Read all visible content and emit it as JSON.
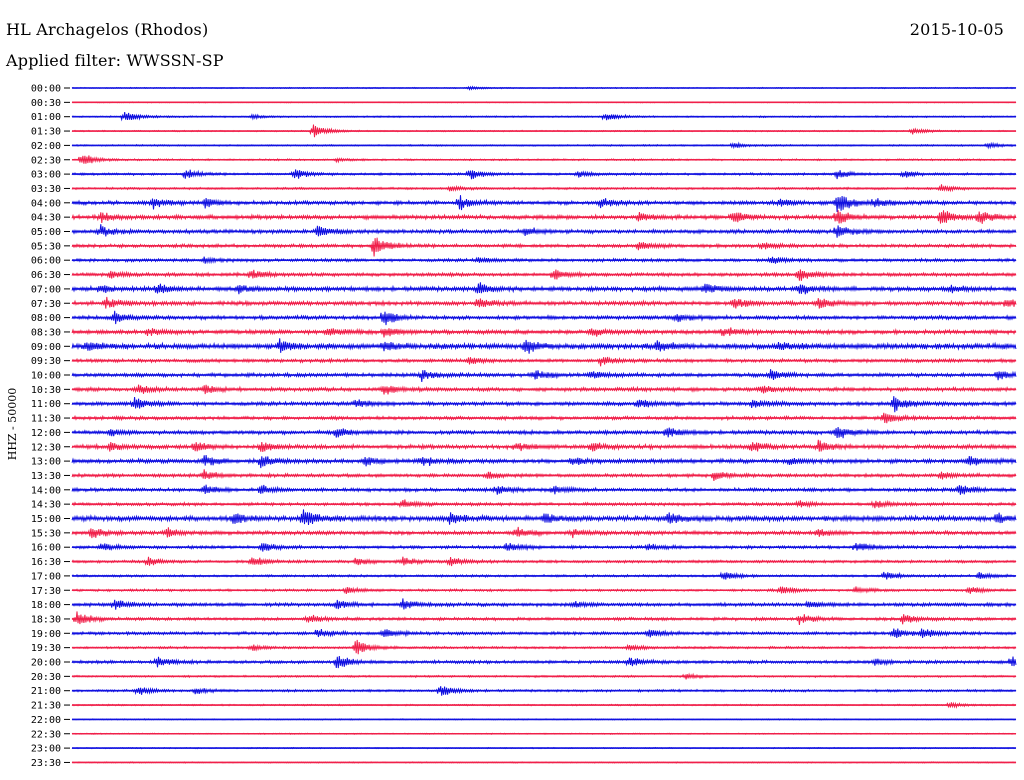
{
  "header": {
    "station": "HL Archagelos (Rhodos)",
    "date": "2015-10-05",
    "filter": "Applied filter: WWSSN-SP"
  },
  "chart_data": {
    "type": "line",
    "title": "HL Archagelos (Rhodos)",
    "ylabel": "HHZ - 50000",
    "colors": [
      "#1010e0",
      "#f0204a"
    ],
    "traces": [
      {
        "time": "00:00",
        "color": "#1010e0",
        "noise": 0.6,
        "events": [
          [
            0.42,
            2
          ]
        ]
      },
      {
        "time": "00:30",
        "color": "#f0204a",
        "noise": 0.5,
        "events": []
      },
      {
        "time": "01:00",
        "color": "#1010e0",
        "noise": 0.8,
        "events": [
          [
            0.055,
            7
          ],
          [
            0.19,
            2
          ],
          [
            0.565,
            5
          ]
        ]
      },
      {
        "time": "01:30",
        "color": "#f0204a",
        "noise": 0.7,
        "events": [
          [
            0.255,
            9
          ],
          [
            0.89,
            4
          ]
        ]
      },
      {
        "time": "02:00",
        "color": "#1010e0",
        "noise": 0.8,
        "events": [
          [
            0.7,
            3
          ],
          [
            0.97,
            3
          ]
        ]
      },
      {
        "time": "02:30",
        "color": "#f0204a",
        "noise": 0.9,
        "events": [
          [
            0.01,
            8
          ],
          [
            0.28,
            2
          ]
        ]
      },
      {
        "time": "03:00",
        "color": "#1010e0",
        "noise": 1.2,
        "events": [
          [
            0.12,
            6
          ],
          [
            0.235,
            6
          ],
          [
            0.42,
            6
          ],
          [
            0.535,
            4
          ],
          [
            0.81,
            5
          ],
          [
            0.88,
            4
          ]
        ]
      },
      {
        "time": "03:30",
        "color": "#f0204a",
        "noise": 1.1,
        "events": [
          [
            0.4,
            3
          ],
          [
            0.92,
            4
          ]
        ]
      },
      {
        "time": "04:00",
        "color": "#1010e0",
        "noise": 2.0,
        "events": [
          [
            0.085,
            6
          ],
          [
            0.14,
            5
          ],
          [
            0.41,
            8
          ],
          [
            0.56,
            6
          ],
          [
            0.75,
            4
          ],
          [
            0.81,
            14
          ],
          [
            0.85,
            5
          ]
        ]
      },
      {
        "time": "04:30",
        "color": "#f0204a",
        "noise": 2.2,
        "events": [
          [
            0.03,
            6
          ],
          [
            0.6,
            6
          ],
          [
            0.7,
            7
          ],
          [
            0.81,
            10
          ],
          [
            0.92,
            9
          ],
          [
            0.96,
            8
          ]
        ]
      },
      {
        "time": "05:00",
        "color": "#1010e0",
        "noise": 2.0,
        "events": [
          [
            0.03,
            6
          ],
          [
            0.26,
            7
          ],
          [
            0.48,
            5
          ],
          [
            0.81,
            8
          ]
        ]
      },
      {
        "time": "05:30",
        "color": "#f0204a",
        "noise": 1.8,
        "events": [
          [
            0.32,
            14
          ],
          [
            0.6,
            5
          ],
          [
            0.73,
            4
          ]
        ]
      },
      {
        "time": "06:00",
        "color": "#1010e0",
        "noise": 1.6,
        "events": [
          [
            0.14,
            3
          ],
          [
            0.43,
            3
          ],
          [
            0.74,
            4
          ]
        ]
      },
      {
        "time": "06:30",
        "color": "#f0204a",
        "noise": 1.8,
        "events": [
          [
            0.04,
            4
          ],
          [
            0.19,
            6
          ],
          [
            0.51,
            6
          ],
          [
            0.77,
            8
          ]
        ]
      },
      {
        "time": "07:00",
        "color": "#1010e0",
        "noise": 2.4,
        "events": [
          [
            0.03,
            5
          ],
          [
            0.09,
            6
          ],
          [
            0.175,
            5
          ],
          [
            0.43,
            7
          ],
          [
            0.67,
            6
          ],
          [
            0.77,
            6
          ],
          [
            0.93,
            4
          ]
        ]
      },
      {
        "time": "07:30",
        "color": "#f0204a",
        "noise": 2.2,
        "events": [
          [
            0.035,
            6
          ],
          [
            0.43,
            6
          ],
          [
            0.7,
            7
          ],
          [
            0.79,
            6
          ],
          [
            0.99,
            5
          ]
        ]
      },
      {
        "time": "08:00",
        "color": "#1010e0",
        "noise": 2.0,
        "events": [
          [
            0.045,
            8
          ],
          [
            0.33,
            9
          ],
          [
            0.64,
            4
          ]
        ]
      },
      {
        "time": "08:30",
        "color": "#f0204a",
        "noise": 2.2,
        "events": [
          [
            0.08,
            4
          ],
          [
            0.27,
            6
          ],
          [
            0.33,
            6
          ],
          [
            0.55,
            5
          ],
          [
            0.69,
            6
          ]
        ]
      },
      {
        "time": "09:00",
        "color": "#1010e0",
        "noise": 3.0,
        "events": [
          [
            0.015,
            6
          ],
          [
            0.22,
            6
          ],
          [
            0.33,
            5
          ],
          [
            0.48,
            8
          ],
          [
            0.62,
            6
          ],
          [
            0.75,
            4
          ]
        ]
      },
      {
        "time": "09:30",
        "color": "#f0204a",
        "noise": 1.8,
        "events": [
          [
            0.42,
            4
          ],
          [
            0.56,
            5
          ]
        ]
      },
      {
        "time": "10:00",
        "color": "#1010e0",
        "noise": 2.0,
        "events": [
          [
            0.37,
            6
          ],
          [
            0.49,
            5
          ],
          [
            0.55,
            5
          ],
          [
            0.74,
            7
          ],
          [
            0.98,
            6
          ]
        ]
      },
      {
        "time": "10:30",
        "color": "#f0204a",
        "noise": 2.0,
        "events": [
          [
            0.07,
            5
          ],
          [
            0.14,
            5
          ],
          [
            0.33,
            6
          ],
          [
            0.73,
            5
          ]
        ]
      },
      {
        "time": "11:00",
        "color": "#1010e0",
        "noise": 2.0,
        "events": [
          [
            0.065,
            7
          ],
          [
            0.3,
            5
          ],
          [
            0.6,
            5
          ],
          [
            0.72,
            6
          ],
          [
            0.87,
            9
          ]
        ]
      },
      {
        "time": "11:30",
        "color": "#f0204a",
        "noise": 1.8,
        "events": [
          [
            0.86,
            7
          ]
        ]
      },
      {
        "time": "12:00",
        "color": "#1010e0",
        "noise": 2.0,
        "events": [
          [
            0.04,
            4
          ],
          [
            0.28,
            6
          ],
          [
            0.63,
            6
          ],
          [
            0.81,
            8
          ]
        ]
      },
      {
        "time": "12:30",
        "color": "#f0204a",
        "noise": 2.2,
        "events": [
          [
            0.04,
            5
          ],
          [
            0.13,
            6
          ],
          [
            0.2,
            6
          ],
          [
            0.47,
            5
          ],
          [
            0.55,
            5
          ],
          [
            0.72,
            6
          ],
          [
            0.79,
            7
          ]
        ]
      },
      {
        "time": "13:00",
        "color": "#1010e0",
        "noise": 2.2,
        "events": [
          [
            0.14,
            6
          ],
          [
            0.2,
            7
          ],
          [
            0.31,
            5
          ],
          [
            0.37,
            6
          ],
          [
            0.53,
            5
          ],
          [
            0.76,
            4
          ],
          [
            0.95,
            6
          ]
        ]
      },
      {
        "time": "13:30",
        "color": "#f0204a",
        "noise": 1.8,
        "events": [
          [
            0.14,
            6
          ],
          [
            0.44,
            4
          ],
          [
            0.68,
            5
          ],
          [
            0.92,
            4
          ]
        ]
      },
      {
        "time": "14:00",
        "color": "#1010e0",
        "noise": 1.8,
        "events": [
          [
            0.14,
            6
          ],
          [
            0.2,
            5
          ],
          [
            0.45,
            6
          ],
          [
            0.51,
            5
          ],
          [
            0.94,
            6
          ]
        ]
      },
      {
        "time": "14:30",
        "color": "#f0204a",
        "noise": 1.6,
        "events": [
          [
            0.35,
            5
          ],
          [
            0.77,
            4
          ],
          [
            0.85,
            5
          ]
        ]
      },
      {
        "time": "15:00",
        "color": "#1010e0",
        "noise": 2.8,
        "events": [
          [
            0.17,
            6
          ],
          [
            0.245,
            11
          ],
          [
            0.4,
            6
          ],
          [
            0.5,
            5
          ],
          [
            0.63,
            6
          ],
          [
            0.98,
            5
          ]
        ]
      },
      {
        "time": "15:30",
        "color": "#f0204a",
        "noise": 2.0,
        "events": [
          [
            0.02,
            7
          ],
          [
            0.1,
            5
          ],
          [
            0.47,
            6
          ],
          [
            0.53,
            4
          ],
          [
            0.79,
            4
          ]
        ]
      },
      {
        "time": "16:00",
        "color": "#1010e0",
        "noise": 1.6,
        "events": [
          [
            0.03,
            5
          ],
          [
            0.2,
            6
          ],
          [
            0.46,
            6
          ],
          [
            0.61,
            4
          ],
          [
            0.83,
            6
          ]
        ]
      },
      {
        "time": "16:30",
        "color": "#f0204a",
        "noise": 1.4,
        "events": [
          [
            0.08,
            5
          ],
          [
            0.19,
            6
          ],
          [
            0.3,
            5
          ],
          [
            0.35,
            5
          ],
          [
            0.4,
            6
          ]
        ]
      },
      {
        "time": "17:00",
        "color": "#1010e0",
        "noise": 1.2,
        "events": [
          [
            0.69,
            6
          ],
          [
            0.86,
            5
          ],
          [
            0.96,
            4
          ]
        ]
      },
      {
        "time": "17:30",
        "color": "#f0204a",
        "noise": 1.2,
        "events": [
          [
            0.29,
            4
          ],
          [
            0.75,
            5
          ],
          [
            0.83,
            4
          ],
          [
            0.95,
            5
          ]
        ]
      },
      {
        "time": "18:00",
        "color": "#1010e0",
        "noise": 1.8,
        "events": [
          [
            0.045,
            6
          ],
          [
            0.28,
            5
          ],
          [
            0.35,
            6
          ],
          [
            0.53,
            4
          ],
          [
            0.78,
            4
          ]
        ]
      },
      {
        "time": "18:30",
        "color": "#f0204a",
        "noise": 1.6,
        "events": [
          [
            0.005,
            8
          ],
          [
            0.25,
            5
          ],
          [
            0.77,
            6
          ],
          [
            0.88,
            6
          ]
        ]
      },
      {
        "time": "19:00",
        "color": "#1010e0",
        "noise": 1.6,
        "events": [
          [
            0.26,
            5
          ],
          [
            0.33,
            6
          ],
          [
            0.61,
            6
          ],
          [
            0.87,
            6
          ],
          [
            0.9,
            6
          ]
        ]
      },
      {
        "time": "19:30",
        "color": "#f0204a",
        "noise": 1.2,
        "events": [
          [
            0.19,
            4
          ],
          [
            0.3,
            10
          ],
          [
            0.59,
            4
          ]
        ]
      },
      {
        "time": "20:00",
        "color": "#1010e0",
        "noise": 1.6,
        "events": [
          [
            0.09,
            7
          ],
          [
            0.28,
            9
          ],
          [
            0.59,
            6
          ],
          [
            0.85,
            4
          ],
          [
            0.995,
            6
          ]
        ]
      },
      {
        "time": "20:30",
        "color": "#f0204a",
        "noise": 1.0,
        "events": [
          [
            0.65,
            3
          ]
        ]
      },
      {
        "time": "21:00",
        "color": "#1010e0",
        "noise": 1.2,
        "events": [
          [
            0.07,
            5
          ],
          [
            0.13,
            4
          ],
          [
            0.39,
            7
          ]
        ]
      },
      {
        "time": "21:30",
        "color": "#f0204a",
        "noise": 0.8,
        "events": [
          [
            0.93,
            3
          ]
        ]
      },
      {
        "time": "22:00",
        "color": "#1010e0",
        "noise": 0.6,
        "events": []
      },
      {
        "time": "22:30",
        "color": "#f0204a",
        "noise": 0.6,
        "events": []
      },
      {
        "time": "23:00",
        "color": "#1010e0",
        "noise": 0.6,
        "events": []
      },
      {
        "time": "23:30",
        "color": "#f0204a",
        "noise": 0.6,
        "events": []
      }
    ]
  }
}
